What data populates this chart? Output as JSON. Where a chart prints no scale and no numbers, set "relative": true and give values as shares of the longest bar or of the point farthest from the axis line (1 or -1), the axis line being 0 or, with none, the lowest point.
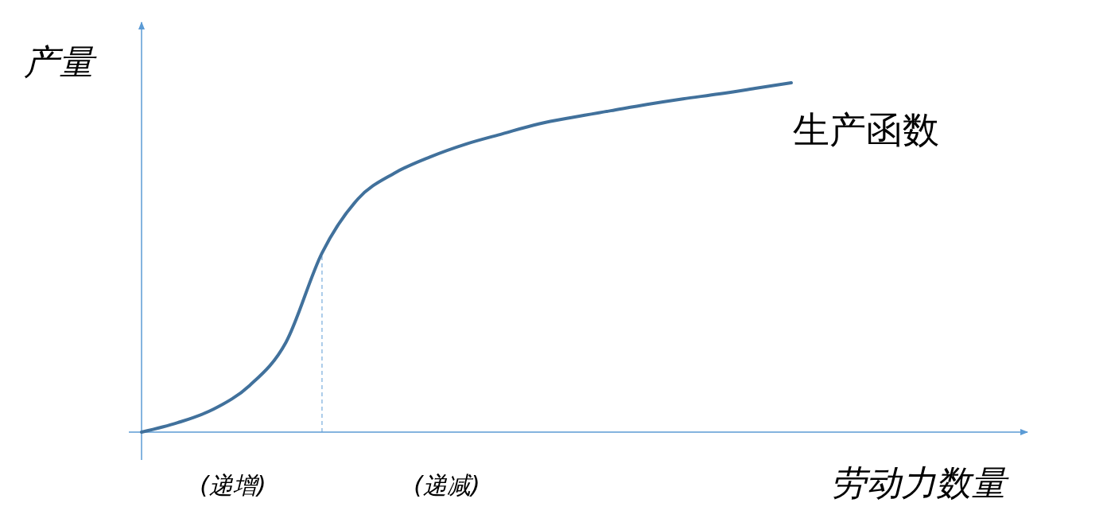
{
  "chart_data": {
    "type": "line",
    "relative": true,
    "xlabel": "劳动力数量",
    "ylabel": "产量",
    "categories": [
      null,
      null,
      null,
      null,
      null,
      null,
      null,
      null,
      null,
      null,
      null,
      null,
      null,
      null,
      null,
      null,
      null,
      null,
      null
    ],
    "series": [
      {
        "name": "生产函数",
        "color": "#41719c",
        "values": [
          0,
          0.027,
          0.066,
          0.134,
          0.257,
          0.513,
          0.668,
          0.741,
          0.788,
          0.825,
          0.854,
          0.882,
          0.902,
          0.92,
          0.938,
          0.954,
          0.968,
          0.984,
          1
        ]
      }
    ],
    "annotations": [
      "(递增)",
      "(递减)"
    ]
  }
}
